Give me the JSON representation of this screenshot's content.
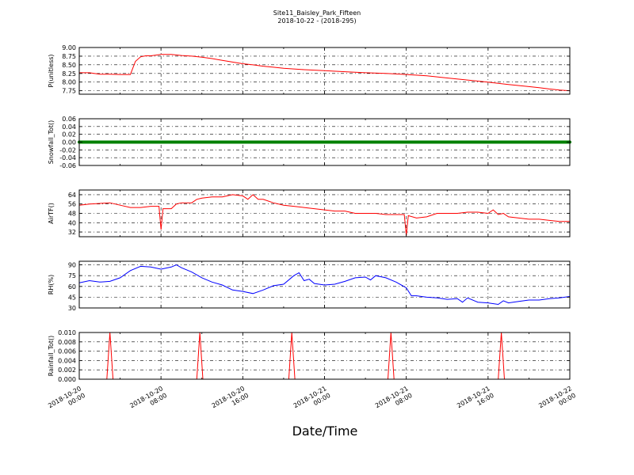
{
  "figure": {
    "title_line1": "Site11_Baisley_Park_Fifteen",
    "title_line2": "2018-10-22 - (2018-295)",
    "xlabel": "Date/Time"
  },
  "x_ticks": [
    {
      "line1": "2018-10-20",
      "line2": "00:00"
    },
    {
      "line1": "2018-10-20",
      "line2": "08:00"
    },
    {
      "line1": "2018-10-20",
      "line2": "16:00"
    },
    {
      "line1": "2018-10-21",
      "line2": "00:00"
    },
    {
      "line1": "2018-10-21",
      "line2": "08:00"
    },
    {
      "line1": "2018-10-21",
      "line2": "16:00"
    },
    {
      "line1": "2018-10-22",
      "line2": "00:00"
    }
  ],
  "chart_data": [
    {
      "type": "line",
      "ylabel": "P(unitless)",
      "ylim": [
        7.65,
        9.0
      ],
      "yticks": [
        "9.00",
        "8.75",
        "8.50",
        "8.25",
        "8.00",
        "7.75"
      ],
      "ytick_values": [
        9.0,
        8.75,
        8.5,
        8.25,
        8.0,
        7.75
      ],
      "grid": true,
      "color": "#ff0000",
      "x_hours": [
        0,
        1,
        2,
        3,
        4,
        5,
        5.5,
        6,
        6.5,
        7,
        8,
        9,
        10,
        11,
        12,
        13,
        14,
        15,
        16,
        17,
        18,
        19,
        20,
        21,
        22,
        24,
        26,
        28,
        30,
        32,
        34,
        36,
        38,
        40,
        42,
        44,
        45,
        46,
        47,
        48
      ],
      "y": [
        8.27,
        8.27,
        8.23,
        8.23,
        8.22,
        8.22,
        8.6,
        8.73,
        8.76,
        8.76,
        8.8,
        8.8,
        8.77,
        8.75,
        8.72,
        8.68,
        8.63,
        8.58,
        8.53,
        8.5,
        8.46,
        8.43,
        8.4,
        8.38,
        8.36,
        8.33,
        8.3,
        8.27,
        8.25,
        8.22,
        8.18,
        8.12,
        8.06,
        8.0,
        7.93,
        7.87,
        7.84,
        7.8,
        7.77,
        7.75
      ]
    },
    {
      "type": "scatter",
      "ylabel": "Snowfall_Tot()",
      "ylim": [
        -0.06,
        0.06
      ],
      "yticks": [
        "0.06",
        "0.04",
        "0.02",
        "0.00",
        "-0.02",
        "-0.04",
        "-0.06"
      ],
      "ytick_values": [
        0.06,
        0.04,
        0.02,
        0.0,
        -0.02,
        -0.04,
        -0.06
      ],
      "grid": true,
      "color": "#008000",
      "x_hours": [
        0,
        48
      ],
      "y": [
        0.0,
        0.0
      ],
      "note_constant": true
    },
    {
      "type": "line",
      "ylabel": "AirTF()",
      "ylim": [
        28,
        68
      ],
      "yticks": [
        "64",
        "56",
        "48",
        "40",
        "32"
      ],
      "ytick_values": [
        64,
        56,
        48,
        40,
        32
      ],
      "grid": true,
      "color": "#ff0000",
      "x_hours": [
        0,
        1,
        3,
        4,
        5,
        6,
        7,
        7.8,
        8,
        8.2,
        9,
        9.5,
        10,
        11,
        11.5,
        12,
        13,
        14,
        15,
        16,
        16.5,
        17,
        17.5,
        18,
        19,
        20,
        21,
        22,
        23,
        24,
        25,
        26,
        27,
        28,
        29,
        30,
        31,
        31.8,
        32,
        32.2,
        33,
        34,
        35,
        36,
        37,
        38,
        39,
        40,
        40.5,
        41,
        41.5,
        42,
        43,
        44,
        45,
        46,
        47,
        48
      ],
      "y": [
        55,
        56,
        57,
        55,
        53,
        53,
        54,
        54,
        34,
        52,
        52,
        56,
        57,
        57,
        60,
        61,
        62,
        62,
        64,
        63,
        60,
        64,
        60,
        60,
        57,
        55,
        54,
        53,
        52,
        51,
        50,
        50,
        48,
        48,
        48,
        47,
        47,
        47,
        29,
        46,
        44,
        45,
        48,
        48,
        48,
        49,
        49,
        48,
        51,
        47,
        48,
        45,
        44,
        43,
        43,
        42,
        41,
        41
      ]
    },
    {
      "type": "line",
      "ylabel": "RH(%)",
      "ylim": [
        30,
        95
      ],
      "yticks": [
        "90",
        "75",
        "60",
        "45",
        "30"
      ],
      "ytick_values": [
        90,
        75,
        60,
        45,
        30
      ],
      "grid": true,
      "color": "#0000ff",
      "x_hours": [
        0,
        1,
        2,
        3,
        4,
        5,
        6,
        7,
        8,
        9,
        9.5,
        10,
        11,
        12,
        13,
        14,
        15,
        16,
        17,
        18,
        19,
        20,
        21,
        21.5,
        22,
        22.5,
        23,
        24,
        25,
        26,
        27,
        28,
        28.5,
        29,
        30,
        31,
        32,
        32.5,
        33,
        34,
        35,
        36,
        37,
        37.5,
        38,
        39,
        40,
        41,
        41.5,
        42,
        43,
        44,
        45,
        46,
        47,
        48
      ],
      "y": [
        65,
        68,
        66,
        67,
        72,
        82,
        88,
        87,
        84,
        87,
        90,
        86,
        80,
        72,
        66,
        62,
        55,
        53,
        50,
        55,
        61,
        63,
        75,
        79,
        68,
        70,
        64,
        62,
        63,
        67,
        72,
        73,
        69,
        75,
        72,
        66,
        58,
        47,
        47,
        45,
        44,
        42,
        43,
        38,
        44,
        38,
        37,
        35,
        40,
        37,
        39,
        41,
        41,
        43,
        44,
        46
      ]
    },
    {
      "type": "line",
      "ylabel": "Rainfall_Tot()",
      "ylim": [
        0,
        0.01
      ],
      "yticks": [
        "0.010",
        "0.008",
        "0.006",
        "0.004",
        "0.002",
        "0.000"
      ],
      "ytick_values": [
        0.01,
        0.008,
        0.006,
        0.004,
        0.002,
        0.0
      ],
      "grid": true,
      "color": "#ff0000",
      "x_hours": [
        0,
        2.7,
        3.0,
        3.3,
        11.5,
        11.8,
        12.1,
        20.5,
        20.8,
        21.1,
        30.2,
        30.5,
        30.8,
        41.0,
        41.3,
        41.6,
        48
      ],
      "y": [
        0,
        0,
        0.01,
        0,
        0,
        0.01,
        0,
        0,
        0.01,
        0,
        0,
        0.01,
        0,
        0,
        0.01,
        0,
        0
      ]
    }
  ]
}
